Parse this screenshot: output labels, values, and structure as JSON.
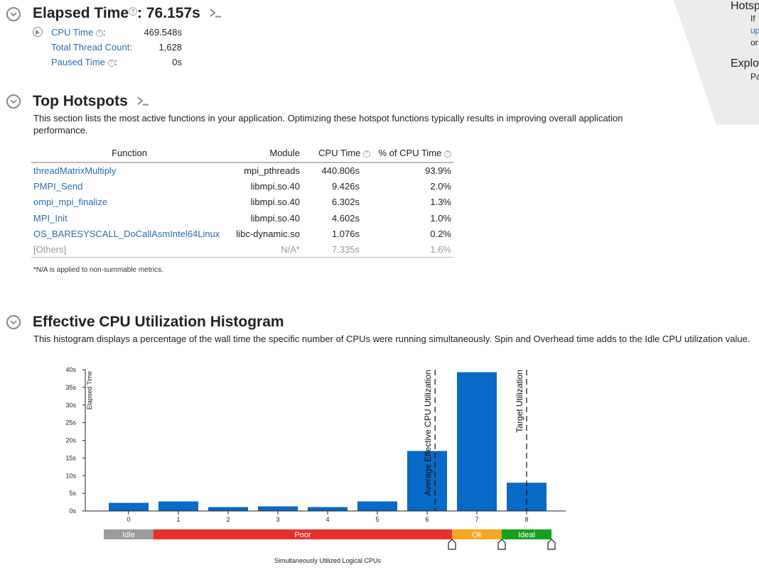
{
  "summary": {
    "elapsed_label": "Elapsed Time",
    "elapsed_sep": ":",
    "elapsed_value": "76.157s",
    "help_glyph": "?",
    "metrics": [
      {
        "label": "CPU Time",
        "suffix": ":",
        "value": "469.548s"
      },
      {
        "label": "Total Thread Count:",
        "value": "1,628"
      },
      {
        "label": "Paused Time",
        "suffix": ":",
        "value": "0s"
      }
    ]
  },
  "side_panel": {
    "title": "Hotsp",
    "line1": "If",
    "line2": "up",
    "line3": "or",
    "title2": "Explo",
    "line4": "Pa"
  },
  "hotspots": {
    "title": "Top Hotspots",
    "description": "This section lists the most active functions in your application. Optimizing these hotspot functions typically results in improving overall application performance.",
    "columns": [
      "Function",
      "Module",
      "CPU Time",
      "% of CPU Time"
    ],
    "rows": [
      {
        "function": "threadMatrixMultiply",
        "module": "mpi_pthreads",
        "cpu_time": "440.806s",
        "percent": "93.9%"
      },
      {
        "function": "PMPI_Send",
        "module": "libmpi.so.40",
        "cpu_time": "9.426s",
        "percent": "2.0%"
      },
      {
        "function": "ompi_mpi_finalize",
        "module": "libmpi.so.40",
        "cpu_time": "6.302s",
        "percent": "1.3%"
      },
      {
        "function": "MPI_Init",
        "module": "libmpi.so.40",
        "cpu_time": "4.602s",
        "percent": "1.0%"
      },
      {
        "function": "OS_BARESYSCALL_DoCallAsmIntel64Linux",
        "module": "libc-dynamic.so",
        "cpu_time": "1.076s",
        "percent": "0.2%"
      }
    ],
    "others": {
      "function": "[Others]",
      "module": "N/A*",
      "cpu_time": "7.335s",
      "percent": "1.6%"
    },
    "footnote": "*N/A is applied to non-summable metrics."
  },
  "histogram": {
    "title": "Effective CPU Utilization Histogram",
    "description": "This histogram displays a percentage of the wall time the specific number of CPUs were running simultaneously. Spin and Overhead time adds to the Idle CPU utilization value."
  },
  "chart_data": {
    "type": "bar",
    "title": "Effective CPU Utilization Histogram",
    "xlabel": "Simultaneously Utilized Logical CPUs",
    "ylabel": "Elapsed Time",
    "categories": [
      "0",
      "1",
      "2",
      "3",
      "4",
      "5",
      "6",
      "7",
      "8"
    ],
    "values": [
      2.3,
      2.7,
      1.1,
      1.3,
      1.1,
      2.7,
      17.0,
      39.3,
      8.0
    ],
    "ylim": [
      0,
      40
    ],
    "yticks": [
      0,
      5,
      10,
      15,
      20,
      25,
      30,
      35,
      40
    ],
    "ytick_suffix": "s",
    "bar_color": "#0969c6",
    "markers": [
      {
        "label": "Average Effective CPU Utilization",
        "x": 6.16
      },
      {
        "label": "Target Utilization",
        "x": 8.0
      }
    ],
    "bands": [
      {
        "label": "Idle",
        "from": -0.5,
        "to": 0.5,
        "color": "#9b9b9b"
      },
      {
        "label": "Poor",
        "from": 0.5,
        "to": 6.5,
        "color": "#e8302a"
      },
      {
        "label": "Ok",
        "from": 6.5,
        "to": 7.5,
        "color": "#f5a623"
      },
      {
        "label": "Ideal",
        "from": 7.5,
        "to": 8.5,
        "color": "#13a21b"
      }
    ],
    "handles": [
      6.5,
      7.5,
      8.5
    ]
  }
}
